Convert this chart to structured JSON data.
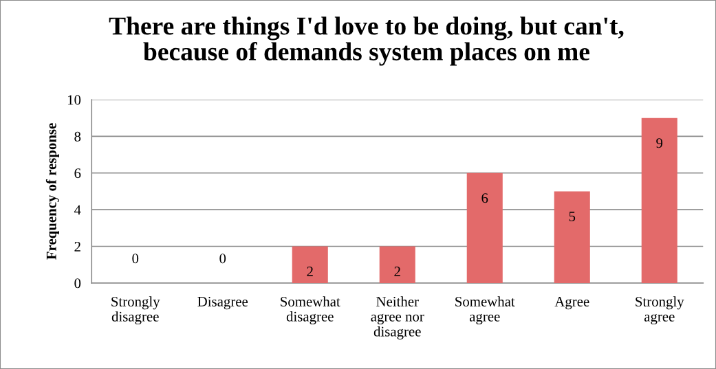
{
  "chart_data": {
    "type": "bar",
    "title": "There are things I'd love to be doing, but can't,\nbecause of demands system places on me",
    "ylabel": "Frequency of response",
    "categories": [
      "Strongly\ndisagree",
      "Disagree",
      "Somewhat\ndisagree",
      "Neither\nagree nor\ndisagree",
      "Somewhat\nagree",
      "Agree",
      "Strongly\nagree"
    ],
    "values": [
      0,
      0,
      2,
      2,
      6,
      5,
      9
    ],
    "color": "#e36a6a",
    "ylim": [
      0,
      10
    ],
    "yticks": [
      0,
      2,
      4,
      6,
      8,
      10
    ],
    "grid": "y",
    "data_labels": true
  }
}
